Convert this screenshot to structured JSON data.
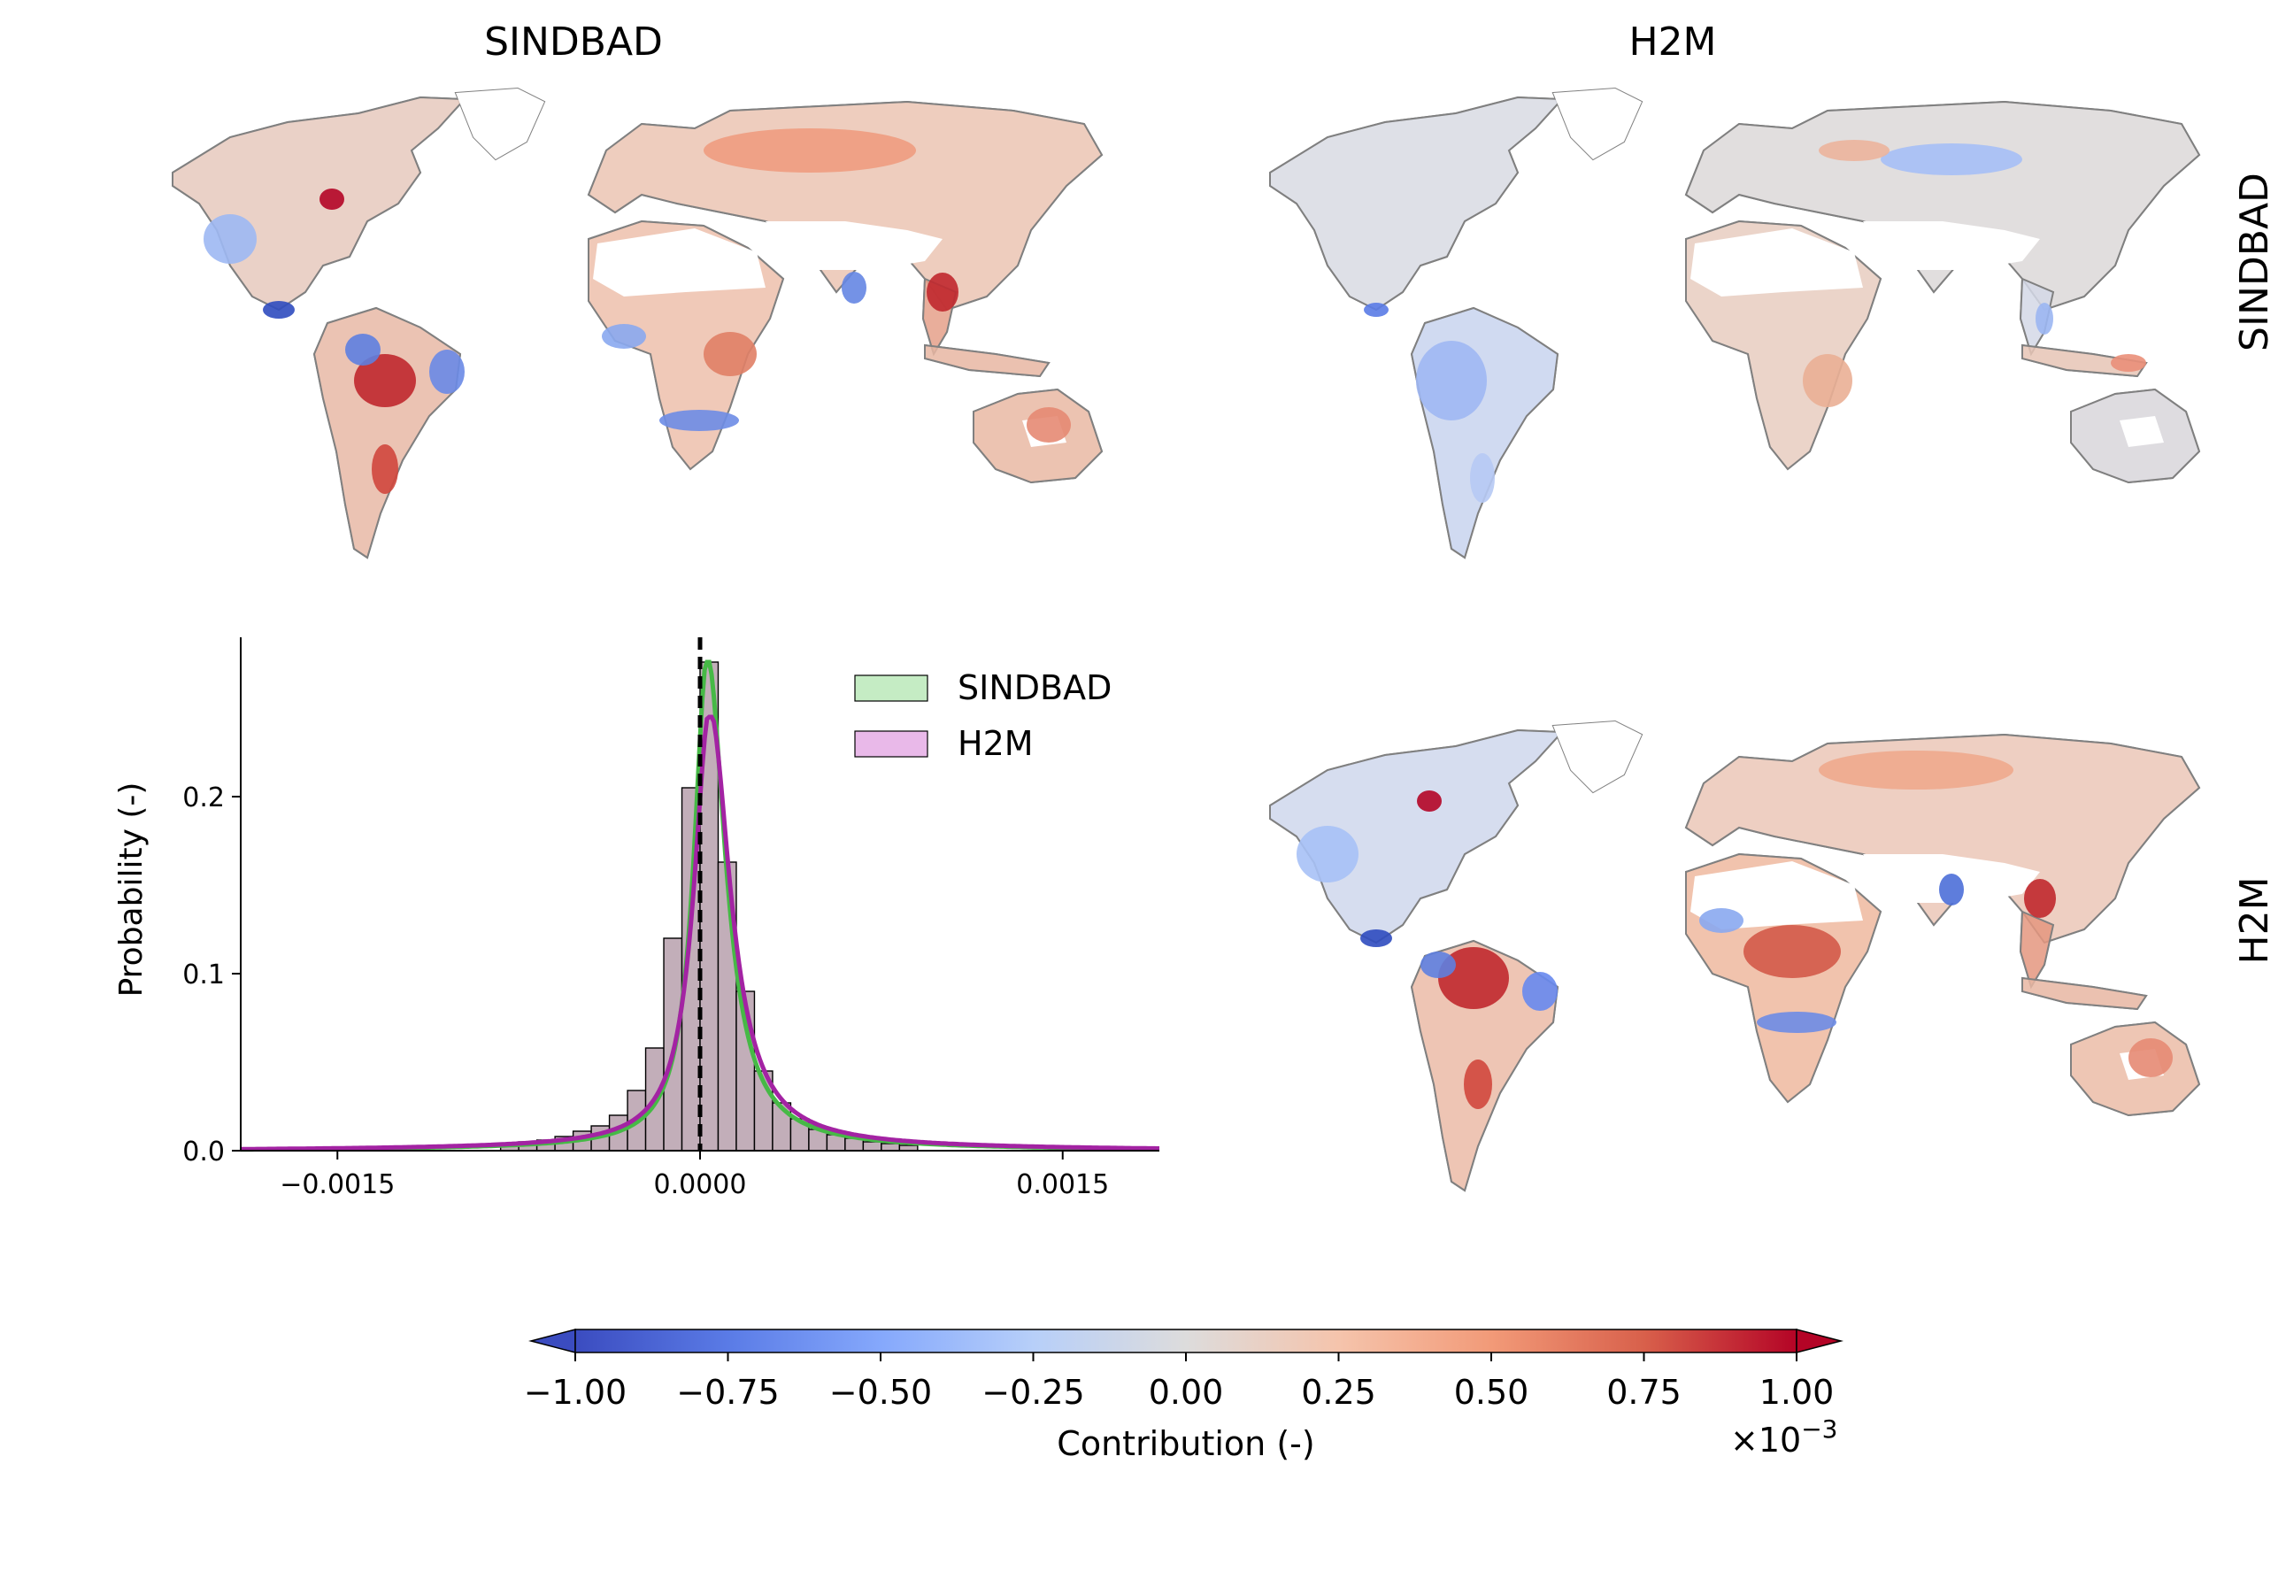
{
  "titles": {
    "col1": "SINDBAD",
    "col2": "H2M",
    "row1": "SINDBAD",
    "row2": "H2M"
  },
  "chart_data": [
    {
      "type": "histogram",
      "panel": "bottom-left",
      "ylabel": "Probability (-)",
      "xticks": [
        "−0.0015",
        "0.0000",
        "0.0015"
      ],
      "xtick_values": [
        -0.0015,
        0.0,
        0.0015
      ],
      "yticks": [
        "0.0",
        "0.1",
        "0.2"
      ],
      "ytick_values": [
        0.0,
        0.1,
        0.2
      ],
      "xlim": [
        -0.0015,
        0.0015
      ],
      "ylim": [
        0,
        0.29
      ],
      "vline_x": 0.0,
      "legend_position": "upper-right",
      "series": [
        {
          "name": "SINDBAD",
          "color": "#46b946",
          "fill": "#c5ecc4"
        },
        {
          "name": "H2M",
          "color": "#a323a3",
          "fill": "#e9b9e9"
        }
      ],
      "bin_width": 7.5e-05,
      "bin_lefts": [
        -0.000825,
        -0.00075,
        -0.000675,
        -0.0006,
        -0.000525,
        -0.00045,
        -0.000375,
        -0.0003,
        -0.000225,
        -0.00015,
        -7.5e-05,
        0.0,
        7.5e-05,
        0.00015,
        0.000225,
        0.0003,
        0.000375,
        0.00045,
        0.000525,
        0.0006,
        0.000675,
        0.00075,
        0.000825
      ],
      "bin_values": [
        0.003,
        0.005,
        0.006,
        0.008,
        0.011,
        0.014,
        0.02,
        0.034,
        0.058,
        0.12,
        0.205,
        0.276,
        0.163,
        0.09,
        0.045,
        0.027,
        0.018,
        0.012,
        0.009,
        0.007,
        0.005,
        0.004,
        0.003
      ],
      "kde": {
        "SINDBAD": {
          "peak_x": 3e-05,
          "peak_y": 0.276
        },
        "H2M": {
          "peak_x": 4e-05,
          "peak_y": 0.245
        }
      }
    },
    {
      "type": "heatmap",
      "panel": "maps",
      "colormap": "coolwarm",
      "maps": [
        {
          "row": "SINDBAD",
          "column": "SINDBAD"
        },
        {
          "row": "SINDBAD",
          "column": "H2M"
        },
        {
          "row": "H2M",
          "column": "H2M"
        }
      ],
      "colorbar": {
        "label": "Contribution (-)",
        "multiplier": "×10",
        "exponent": "−3",
        "ticks": [
          "−1.00",
          "−0.75",
          "−0.50",
          "−0.25",
          "0.00",
          "0.25",
          "0.50",
          "0.75",
          "1.00"
        ],
        "tick_values": [
          -1.0,
          -0.75,
          -0.5,
          -0.25,
          0.0,
          0.25,
          0.5,
          0.75,
          1.0
        ],
        "extend": "both",
        "colors": [
          "#3b4cc0",
          "#6788ee",
          "#9abbff",
          "#c9d7f0",
          "#dddddd",
          "#f2cbb7",
          "#f7a889",
          "#e26952",
          "#b40426"
        ]
      }
    }
  ]
}
